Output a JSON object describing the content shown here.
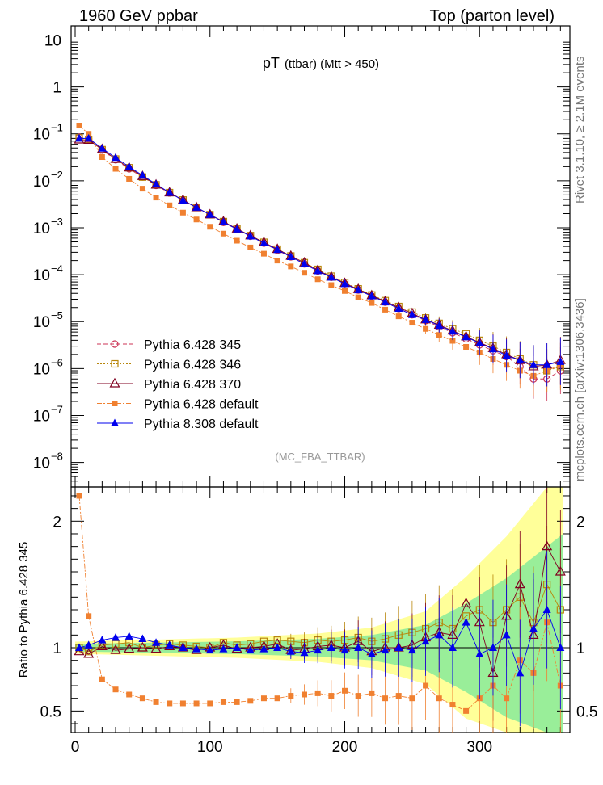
{
  "header": {
    "left": "1960 GeV ppbar",
    "right": "Top (parton level)",
    "side_top": "Rivet 3.1.10, ≥ 2.1M events",
    "side_bottom": "mcplots.cern.ch [arXiv:1306.3436]",
    "plot_title_main": "pT",
    "plot_title_sub": "(ttbar) (Mtt > 450)",
    "analysis": "(MC_FBA_TTBAR)"
  },
  "chart_data": [
    {
      "type": "scatter",
      "panel": "main",
      "yscale": "log",
      "xlim": [
        -3,
        367
      ],
      "ylim": [
        3e-09,
        20
      ],
      "y_ticks": [
        {
          "v": 10,
          "l": "10",
          "e": ""
        },
        {
          "v": 1,
          "l": "1",
          "e": ""
        },
        {
          "v": 0.1,
          "l": "10",
          "e": "−1"
        },
        {
          "v": 0.01,
          "l": "10",
          "e": "−2"
        },
        {
          "v": 0.001,
          "l": "10",
          "e": "−3"
        },
        {
          "v": 0.0001,
          "l": "10",
          "e": "−4"
        },
        {
          "v": 1e-05,
          "l": "10",
          "e": "−5"
        },
        {
          "v": 1e-06,
          "l": "10",
          "e": "−6"
        },
        {
          "v": 1e-07,
          "l": "10",
          "e": "−7"
        },
        {
          "v": 1e-08,
          "l": "10",
          "e": "−8"
        }
      ],
      "legend": {
        "position": "bottom-left"
      },
      "series": [
        {
          "name": "Pythia 6.428 345",
          "color": "#cc3355",
          "marker": "circle-open",
          "line": "dash",
          "x": [
            3,
            10,
            20,
            30,
            40,
            50,
            60,
            70,
            80,
            90,
            100,
            110,
            120,
            130,
            140,
            150,
            160,
            170,
            180,
            190,
            200,
            210,
            220,
            230,
            240,
            250,
            260,
            270,
            280,
            290,
            300,
            310,
            320,
            330,
            340,
            350,
            360
          ],
          "y": [
            0.085,
            0.078,
            0.045,
            0.028,
            0.018,
            0.012,
            0.008,
            0.0055,
            0.0038,
            0.0027,
            0.0019,
            0.0013,
            0.00093,
            0.00066,
            0.00047,
            0.00033,
            0.00024,
            0.00017,
            0.00012,
            8.8e-05,
            6.4e-05,
            4.7e-05,
            3.5e-05,
            2.6e-05,
            1.9e-05,
            1.4e-05,
            1.05e-05,
            7.8e-06,
            5.8e-06,
            4.3e-06,
            3.2e-06,
            2.4e-06,
            1.8e-06,
            1.1e-06,
            6e-07,
            6e-07,
            9e-07
          ]
        },
        {
          "name": "Pythia 6.428 346",
          "color": "#b8860b",
          "marker": "square-open",
          "line": "dot",
          "x": [
            3,
            10,
            20,
            30,
            40,
            50,
            60,
            70,
            80,
            90,
            100,
            110,
            120,
            130,
            140,
            150,
            160,
            170,
            180,
            190,
            200,
            210,
            220,
            230,
            240,
            250,
            260,
            270,
            280,
            290,
            300,
            310,
            320,
            330,
            340,
            350,
            360
          ],
          "y": [
            0.082,
            0.076,
            0.046,
            0.029,
            0.019,
            0.012,
            0.0082,
            0.0056,
            0.0039,
            0.0027,
            0.0019,
            0.00135,
            0.00095,
            0.00068,
            0.00049,
            0.00035,
            0.00025,
            0.00018,
            0.00013,
            9.3e-05,
            6.8e-05,
            5e-05,
            3.7e-05,
            2.8e-05,
            2.1e-05,
            1.6e-05,
            1.2e-05,
            9.2e-06,
            7e-06,
            5.5e-06,
            4e-06,
            3e-06,
            2.2e-06,
            1.6e-06,
            1.2e-06,
            9e-07,
            1.1e-06
          ]
        },
        {
          "name": "Pythia 6.428 370",
          "color": "#800020",
          "marker": "triangle-open",
          "line": "solid",
          "x": [
            3,
            10,
            20,
            30,
            40,
            50,
            60,
            70,
            80,
            90,
            100,
            110,
            120,
            130,
            140,
            150,
            160,
            170,
            180,
            190,
            200,
            210,
            220,
            230,
            240,
            250,
            260,
            270,
            280,
            290,
            300,
            310,
            320,
            330,
            340,
            350,
            360
          ],
          "y": [
            0.075,
            0.074,
            0.047,
            0.029,
            0.019,
            0.0125,
            0.0082,
            0.0056,
            0.0039,
            0.0027,
            0.0019,
            0.00135,
            0.00095,
            0.00068,
            0.00049,
            0.00035,
            0.00025,
            0.00018,
            0.000125,
            9e-05,
            6.6e-05,
            4.9e-05,
            3.6e-05,
            2.7e-05,
            2e-05,
            1.5e-05,
            1.1e-05,
            8.5e-06,
            6.4e-06,
            4.8e-06,
            3.6e-06,
            2.7e-06,
            2e-06,
            1.5e-06,
            1.1e-06,
            1.2e-06,
            1.5e-06
          ]
        },
        {
          "name": "Pythia 6.428 default",
          "color": "#f08030",
          "marker": "square-filled",
          "line": "dashdot",
          "x": [
            3,
            10,
            20,
            30,
            40,
            50,
            60,
            70,
            80,
            90,
            100,
            110,
            120,
            130,
            140,
            150,
            160,
            170,
            180,
            190,
            200,
            210,
            220,
            230,
            240,
            250,
            260,
            270,
            280,
            290,
            300,
            310,
            320,
            330,
            340,
            350,
            360
          ],
          "y": [
            0.15,
            0.1,
            0.032,
            0.018,
            0.011,
            0.0068,
            0.0044,
            0.003,
            0.0021,
            0.0015,
            0.00105,
            0.00075,
            0.00053,
            0.00038,
            0.00028,
            0.0002,
            0.00015,
            0.00011,
            8e-05,
            6e-05,
            4.5e-05,
            3.3e-05,
            2.5e-05,
            1.8e-05,
            1.3e-05,
            9.5e-06,
            7e-06,
            5.2e-06,
            3.9e-06,
            2.9e-06,
            2.2e-06,
            1.6e-06,
            1.2e-06,
            9e-07,
            7e-07,
            9e-07,
            1.2e-06
          ]
        },
        {
          "name": "Pythia 8.308 default",
          "color": "#0000ee",
          "marker": "triangle-filled",
          "line": "solid",
          "x": [
            3,
            10,
            20,
            30,
            40,
            50,
            60,
            70,
            80,
            90,
            100,
            110,
            120,
            130,
            140,
            150,
            160,
            170,
            180,
            190,
            200,
            210,
            220,
            230,
            240,
            250,
            260,
            270,
            280,
            290,
            300,
            310,
            320,
            330,
            340,
            350,
            360
          ],
          "y": [
            0.08,
            0.08,
            0.049,
            0.031,
            0.02,
            0.013,
            0.0085,
            0.0056,
            0.0038,
            0.0027,
            0.0019,
            0.00132,
            0.00093,
            0.00066,
            0.00047,
            0.00034,
            0.00024,
            0.00017,
            0.00012,
            8.8e-05,
            6.4e-05,
            4.7e-05,
            3.5e-05,
            2.6e-05,
            1.9e-05,
            1.4e-05,
            1.1e-05,
            8.2e-06,
            6.2e-06,
            4.7e-06,
            3.5e-06,
            2.6e-06,
            1.9e-06,
            1.5e-06,
            1.2e-06,
            1.2e-06,
            1.4e-06
          ]
        }
      ]
    },
    {
      "type": "scatter",
      "panel": "ratio",
      "ylabel": "Ratio to Pythia 6.428 345",
      "xlim": [
        -3,
        367
      ],
      "ylim": [
        0.33,
        2.27
      ],
      "x_ticks": [
        0,
        100,
        200,
        300
      ],
      "y_ticks": [
        0.5,
        1,
        2
      ],
      "reference": 1,
      "series": [
        {
          "name": "Pythia 6.428 346",
          "color": "#b8860b",
          "marker": "square-open",
          "x": [
            3,
            10,
            20,
            30,
            40,
            50,
            60,
            70,
            80,
            90,
            100,
            110,
            120,
            130,
            140,
            150,
            160,
            170,
            180,
            190,
            200,
            210,
            220,
            230,
            240,
            250,
            260,
            270,
            280,
            290,
            300,
            310,
            320,
            330,
            340,
            350,
            360
          ],
          "y": [
            1.0,
            0.97,
            1.02,
            1.03,
            1.04,
            1.0,
            1.02,
            1.03,
            1.02,
            1.01,
            1.0,
            1.04,
            1.02,
            1.03,
            1.05,
            1.06,
            1.05,
            1.04,
            1.06,
            1.05,
            1.06,
            1.08,
            1.05,
            1.07,
            1.1,
            1.12,
            1.15,
            1.2,
            1.15,
            1.25,
            1.3,
            1.2,
            1.3,
            1.4,
            1.2,
            1.5,
            1.3
          ]
        },
        {
          "name": "Pythia 6.428 370",
          "color": "#800020",
          "marker": "triangle-open",
          "x": [
            3,
            10,
            20,
            30,
            40,
            50,
            60,
            70,
            80,
            90,
            100,
            110,
            120,
            130,
            140,
            150,
            160,
            170,
            180,
            190,
            200,
            210,
            220,
            230,
            240,
            250,
            260,
            270,
            280,
            290,
            300,
            310,
            320,
            330,
            340,
            350,
            360
          ],
          "y": [
            0.97,
            0.95,
            1.01,
            0.98,
            0.99,
            1.0,
            0.99,
            1.01,
            1.0,
            0.98,
            1.0,
            1.02,
            0.99,
            1.0,
            1.01,
            1.03,
            0.98,
            0.99,
            1.01,
            1.02,
            1.0,
            1.05,
            0.97,
            1.0,
            1.0,
            1.02,
            1.08,
            1.12,
            1.1,
            1.35,
            1.2,
            0.8,
            1.25,
            1.5,
            1.1,
            1.8,
            1.6
          ]
        },
        {
          "name": "Pythia 6.428 default",
          "color": "#f08030",
          "marker": "square-filled",
          "x": [
            3,
            10,
            20,
            30,
            40,
            50,
            60,
            70,
            80,
            90,
            100,
            110,
            120,
            130,
            140,
            150,
            160,
            170,
            180,
            190,
            200,
            210,
            220,
            230,
            240,
            250,
            260,
            270,
            280,
            290,
            300,
            310,
            320,
            330,
            340,
            350,
            360
          ],
          "y": [
            2.2,
            1.25,
            0.75,
            0.67,
            0.63,
            0.6,
            0.57,
            0.56,
            0.56,
            0.56,
            0.56,
            0.57,
            0.57,
            0.58,
            0.6,
            0.6,
            0.62,
            0.63,
            0.64,
            0.62,
            0.66,
            0.62,
            0.64,
            0.6,
            0.62,
            0.6,
            0.7,
            0.6,
            0.55,
            0.5,
            0.6,
            0.7,
            0.6,
            0.9,
            0.8,
            1.2,
            0.7
          ]
        },
        {
          "name": "Pythia 8.308 default",
          "color": "#0000ee",
          "marker": "triangle-filled",
          "x": [
            3,
            10,
            20,
            30,
            40,
            50,
            60,
            70,
            80,
            90,
            100,
            110,
            120,
            130,
            140,
            150,
            160,
            170,
            180,
            190,
            200,
            210,
            220,
            230,
            240,
            250,
            260,
            270,
            280,
            290,
            300,
            310,
            320,
            330,
            340,
            350,
            360
          ],
          "y": [
            1.0,
            1.02,
            1.06,
            1.08,
            1.09,
            1.07,
            1.04,
            1.02,
            1.0,
            0.99,
            0.98,
            0.99,
            1.0,
            0.98,
            0.99,
            1.0,
            0.97,
            0.96,
            0.98,
            1.0,
            0.98,
            1.0,
            0.95,
            0.98,
            1.0,
            0.98,
            1.05,
            1.1,
            1.0,
            1.2,
            0.95,
            1.0,
            1.1,
            0.8,
            1.15,
            1.3,
            1.0
          ]
        }
      ]
    }
  ]
}
